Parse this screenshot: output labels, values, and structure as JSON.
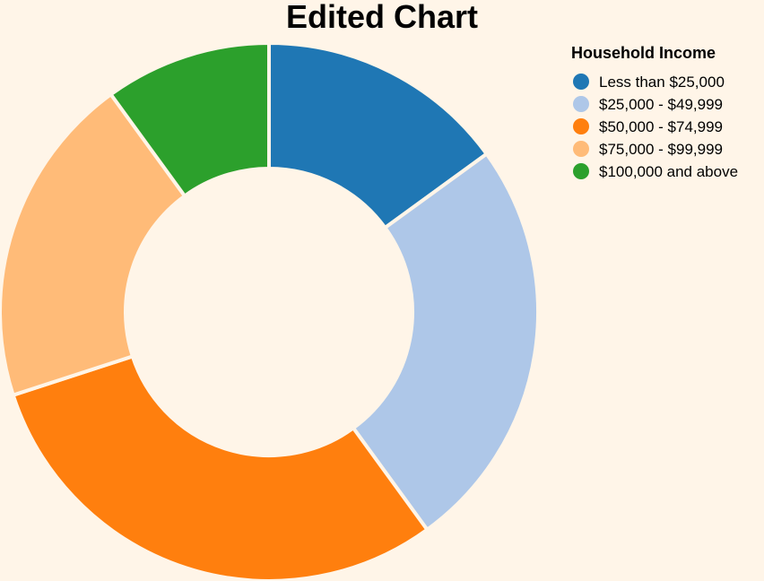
{
  "chart_data": {
    "type": "pie",
    "variant": "donut",
    "title": "Edited Chart",
    "legend": {
      "title": "Household Income",
      "placement": "top-right"
    },
    "slices": [
      {
        "label": "Less than $25,000",
        "value": 15,
        "color": "#1f77b4"
      },
      {
        "label": "$25,000 - $49,999",
        "value": 25,
        "color": "#aec7e8"
      },
      {
        "label": "$50,000 - $74,999",
        "value": 30,
        "color": "#ff7f0e"
      },
      {
        "label": "$75,000 - $99,999",
        "value": 20,
        "color": "#ffbb78"
      },
      {
        "label": "$100,000 and above",
        "value": 10,
        "color": "#2ca02c"
      }
    ]
  }
}
